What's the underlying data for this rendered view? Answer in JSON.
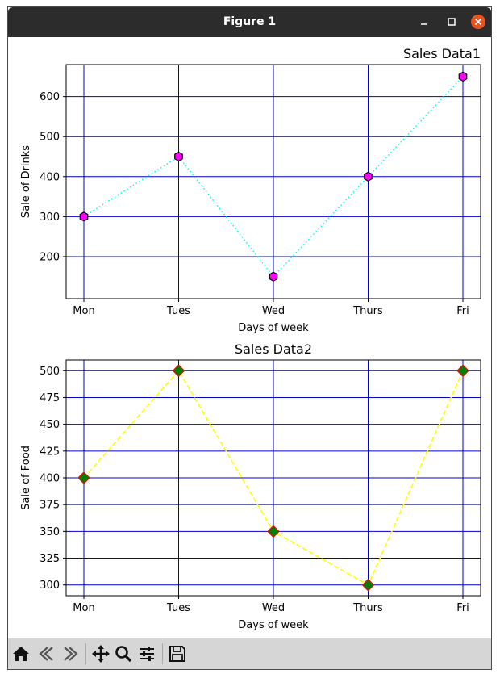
{
  "window": {
    "title": "Figure 1"
  },
  "toolbar": {
    "buttons": [
      "home-icon",
      "back-icon",
      "forward-icon",
      "pan-icon",
      "zoom-icon",
      "configure-icon",
      "save-icon"
    ]
  },
  "chart_data": [
    {
      "type": "line",
      "title": "Sales Data1",
      "xlabel": "Days of week",
      "ylabel": "Sale of Drinks",
      "categories": [
        "Mon",
        "Tues",
        "Wed",
        "Thurs",
        "Fri"
      ],
      "values": [
        300,
        450,
        150,
        400,
        650
      ],
      "ylim": [
        95,
        680
      ],
      "yticks": [
        200,
        300,
        400,
        500,
        600
      ],
      "grid": true,
      "grid_color": "#0000cc",
      "line_color": "#00ffff",
      "line_style": "dotted",
      "marker": "hexagon",
      "marker_color": "#ff00ff",
      "marker_edge_color": "#000000"
    },
    {
      "type": "line",
      "title": "Sales Data2",
      "xlabel": "Days of week",
      "ylabel": "Sale of Food",
      "categories": [
        "Mon",
        "Tues",
        "Wed",
        "Thurs",
        "Fri"
      ],
      "values": [
        400,
        500,
        350,
        300,
        500
      ],
      "ylim": [
        290,
        510
      ],
      "yticks": [
        300,
        325,
        350,
        375,
        400,
        425,
        450,
        475,
        500
      ],
      "grid": true,
      "grid_color": "#0000cc",
      "line_color": "#ffff00",
      "line_style": "dashed",
      "marker": "diamond",
      "marker_color": "#008000",
      "marker_edge_color": "#ff0000"
    }
  ]
}
